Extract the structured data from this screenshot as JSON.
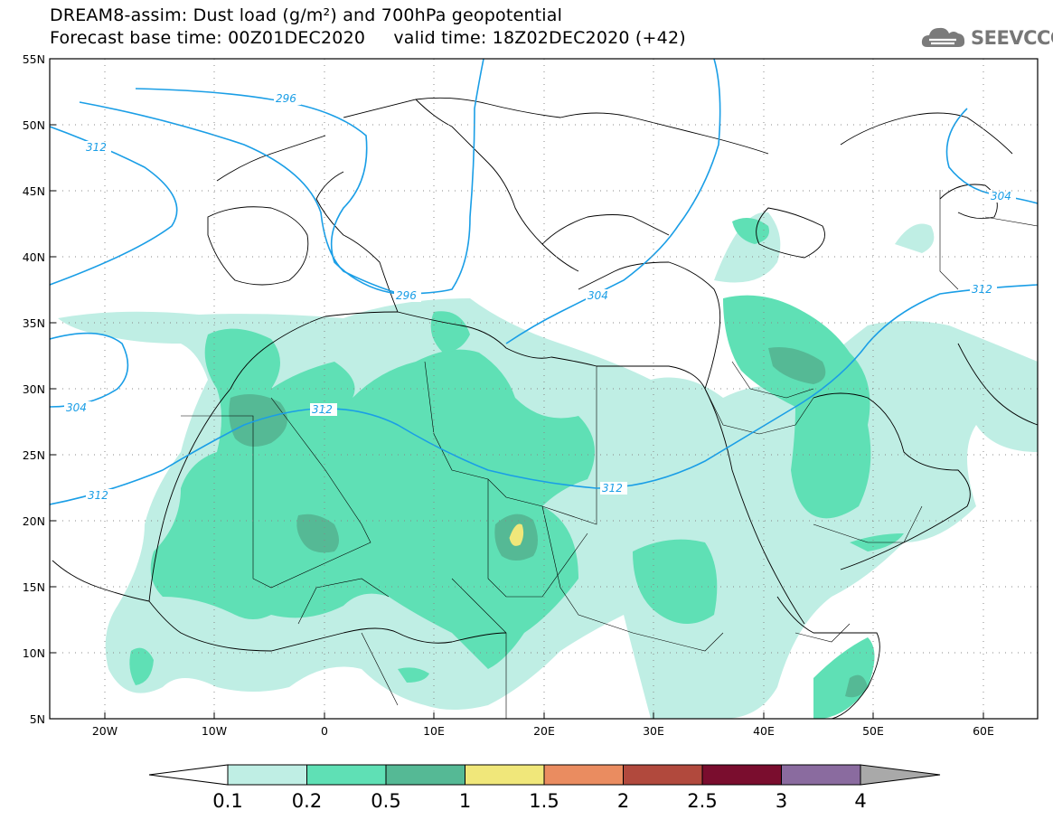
{
  "title": {
    "line1": "DREAM8-assim: Dust load (g/m²) and 700hPa geopotential",
    "line2": "Forecast base time: 00Z01DEC2020     valid time: 18Z02DEC2020 (+42)"
  },
  "logo": {
    "text": "SEEVCCC",
    "icon": "cloud-icon"
  },
  "map": {
    "lon_range": [
      -25,
      65
    ],
    "lat_range": [
      5,
      55
    ],
    "lat_labels": [
      "55N",
      "50N",
      "45N",
      "40N",
      "35N",
      "30N",
      "25N",
      "20N",
      "15N",
      "10N",
      "5N"
    ],
    "lon_labels": [
      "20W",
      "10W",
      "0",
      "10E",
      "20E",
      "30E",
      "40E",
      "50E",
      "60E"
    ],
    "grid": "dotted",
    "contour_color": "#1a9ee6",
    "contour_labels": [
      "296",
      "312",
      "304",
      "296",
      "304",
      "312",
      "312",
      "312",
      "304",
      "312"
    ]
  },
  "colorbar": {
    "colors": [
      "#bfeee4",
      "#5fe0b5",
      "#55b995",
      "#f0e77a",
      "#ea8c60",
      "#b1493d",
      "#7a0d2e",
      "#8a6b9f"
    ],
    "under_color": "#ffffff",
    "over_color": "#a9a9a9",
    "tick_labels": [
      "0.1",
      "0.2",
      "0.5",
      "1",
      "1.5",
      "2",
      "2.5",
      "3",
      "4"
    ]
  }
}
